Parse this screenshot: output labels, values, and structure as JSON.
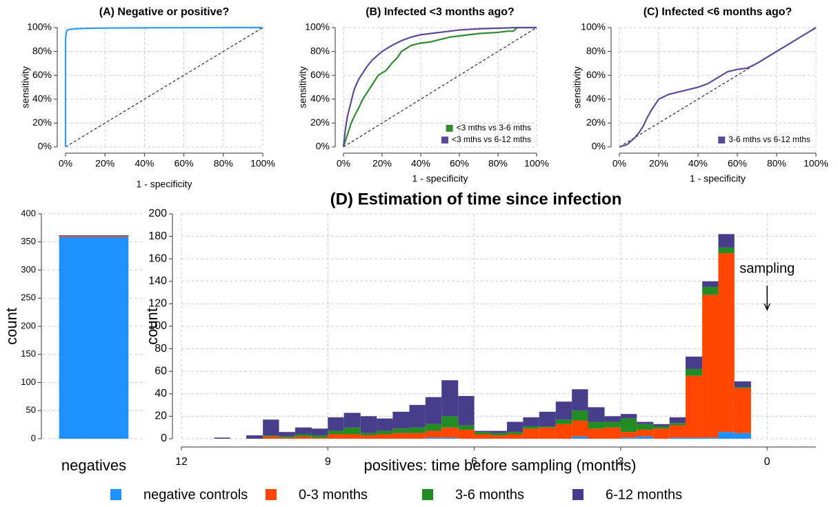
{
  "chart_data": [
    {
      "type": "line",
      "title": "(A) Negative or positive?",
      "x_label": "1 - specificity",
      "y_label": "sensitivity",
      "xlim": [
        0,
        100
      ],
      "ylim": [
        0,
        100
      ],
      "grid": true,
      "xticks": [
        {
          "value": 0,
          "label": "0%"
        },
        {
          "value": 20,
          "label": "20%"
        },
        {
          "value": 40,
          "label": "40%"
        },
        {
          "value": 60,
          "label": "60%"
        },
        {
          "value": 80,
          "label": "80%"
        },
        {
          "value": 100,
          "label": "100%"
        }
      ],
      "yticks": [
        {
          "value": 0,
          "label": "0%"
        },
        {
          "value": 20,
          "label": "20%"
        },
        {
          "value": 40,
          "label": "40%"
        },
        {
          "value": 60,
          "label": "60%"
        },
        {
          "value": 80,
          "label": "80%"
        },
        {
          "value": 100,
          "label": "100%"
        }
      ],
      "series": [
        {
          "color": "#3399ff",
          "x": [
            0,
            0,
            0.5,
            1,
            2,
            5,
            10,
            20,
            40,
            60,
            80,
            100
          ],
          "values": [
            0,
            90,
            97,
            98,
            98.5,
            99,
            99.3,
            99.6,
            99.8,
            99.9,
            100,
            100
          ]
        }
      ]
    },
    {
      "type": "line",
      "title": "(B) Infected <3 months ago?",
      "x_label": "1 - specificity",
      "y_label": "sensitivity",
      "xlim": [
        0,
        100
      ],
      "ylim": [
        0,
        100
      ],
      "grid": true,
      "legend": "bottom-right",
      "xticks": [
        {
          "value": 0,
          "label": "0%"
        },
        {
          "value": 20,
          "label": "20%"
        },
        {
          "value": 40,
          "label": "40%"
        },
        {
          "value": 60,
          "label": "60%"
        },
        {
          "value": 80,
          "label": "80%"
        },
        {
          "value": 100,
          "label": "100%"
        }
      ],
      "yticks": [
        {
          "value": 0,
          "label": "0%"
        },
        {
          "value": 20,
          "label": "20%"
        },
        {
          "value": 40,
          "label": "40%"
        },
        {
          "value": 60,
          "label": "60%"
        },
        {
          "value": 80,
          "label": "80%"
        },
        {
          "value": 100,
          "label": "100%"
        }
      ],
      "series": [
        {
          "name": "<3 mths vs 3-6 mths",
          "color": "#2e8b2e",
          "x": [
            0,
            2,
            4,
            6,
            8,
            10,
            12,
            14,
            16,
            18,
            20,
            22,
            25,
            28,
            30,
            35,
            40,
            45,
            50,
            55,
            60,
            70,
            80,
            85,
            88,
            90,
            100
          ],
          "values": [
            0,
            10,
            20,
            27,
            33,
            40,
            45,
            50,
            55,
            60,
            62,
            64,
            70,
            75,
            80,
            85,
            87,
            88,
            90,
            92,
            93,
            95,
            96,
            97,
            97,
            100,
            100
          ]
        },
        {
          "name": "<3 mths vs 6-12 mths",
          "color": "#5b4a9b",
          "x": [
            0,
            1,
            2,
            3,
            4,
            5,
            6,
            8,
            10,
            12,
            15,
            20,
            25,
            30,
            35,
            40,
            50,
            60,
            70,
            80,
            90,
            100
          ],
          "values": [
            0,
            15,
            25,
            32,
            38,
            45,
            50,
            57,
            62,
            67,
            73,
            80,
            85,
            89,
            92,
            94,
            96,
            98,
            99,
            99.5,
            100,
            100
          ]
        }
      ]
    },
    {
      "type": "line",
      "title": "(C) Infected <6 months ago?",
      "x_label": "1 - specificity",
      "y_label": "sensitivity",
      "xlim": [
        0,
        100
      ],
      "ylim": [
        0,
        100
      ],
      "grid": true,
      "legend": "bottom-right",
      "xticks": [
        {
          "value": 0,
          "label": "0%"
        },
        {
          "value": 20,
          "label": "20%"
        },
        {
          "value": 40,
          "label": "40%"
        },
        {
          "value": 60,
          "label": "60%"
        },
        {
          "value": 80,
          "label": "80%"
        },
        {
          "value": 100,
          "label": "100%"
        }
      ],
      "yticks": [
        {
          "value": 0,
          "label": "0%"
        },
        {
          "value": 20,
          "label": "20%"
        },
        {
          "value": 40,
          "label": "40%"
        },
        {
          "value": 60,
          "label": "60%"
        },
        {
          "value": 80,
          "label": "80%"
        },
        {
          "value": 100,
          "label": "100%"
        }
      ],
      "series": [
        {
          "name": "3-6 mths vs 6-12 mths",
          "color": "#5b4a9b",
          "x": [
            0,
            4,
            6,
            8,
            10,
            12,
            14,
            16,
            18,
            20,
            25,
            30,
            35,
            40,
            45,
            50,
            55,
            60,
            65,
            70,
            75,
            80,
            85,
            90,
            95,
            100
          ],
          "values": [
            0,
            2,
            5,
            8,
            12,
            17,
            24,
            30,
            35,
            40,
            44,
            46,
            48,
            50,
            53,
            58,
            63,
            65,
            66,
            70,
            75,
            80,
            85,
            90,
            95,
            100
          ]
        }
      ]
    },
    {
      "type": "bar",
      "stacked": true,
      "y_label": "count",
      "categories": [
        "negatives"
      ],
      "ylim": [
        0,
        400
      ],
      "yticks": [
        0,
        50,
        100,
        150,
        200,
        250,
        300,
        350,
        400
      ],
      "grid": true,
      "series": [
        {
          "color": "#1e90ff",
          "values": [
            359
          ]
        },
        {
          "color": "#ff4500",
          "values": [
            2
          ]
        },
        {
          "color": "#483d8b",
          "values": [
            1
          ]
        }
      ]
    },
    {
      "type": "histogram",
      "stacked": true,
      "title": "(D) Estimation of time since infection",
      "x_label": "positives: time before sampling (months)",
      "y_label": "count",
      "xlim": [
        12,
        -1
      ],
      "xticks": [
        12,
        9,
        6,
        3,
        0
      ],
      "ylim": [
        0,
        200
      ],
      "yticks": [
        0,
        20,
        40,
        60,
        80,
        100,
        120,
        140,
        160,
        180,
        200
      ],
      "grid": true,
      "legend": "bottom",
      "annotation": {
        "text": "sampling",
        "x": 0
      },
      "bins": [
        11.33,
        11,
        10.67,
        10.33,
        10,
        9.67,
        9.33,
        9,
        8.67,
        8.33,
        8,
        7.67,
        7.33,
        7,
        6.67,
        6.33,
        6,
        5.67,
        5.33,
        5,
        4.67,
        4.33,
        4,
        3.67,
        3.33,
        3,
        2.67,
        2.33,
        2,
        1.67,
        1.33,
        1,
        0.67,
        0.33
      ],
      "series": [
        {
          "name": "negative controls",
          "color": "#1e90ff",
          "values": [
            0,
            0,
            0,
            0,
            0,
            0,
            0,
            0,
            0,
            0,
            0,
            0,
            0,
            1,
            1,
            0,
            0,
            0,
            0,
            0,
            0,
            0,
            2,
            0,
            0,
            1,
            2,
            0,
            1,
            1,
            1,
            6,
            5
          ]
        },
        {
          "name": "0-3 months",
          "color": "#ff4500",
          "values": [
            0,
            0,
            0,
            2,
            1,
            2,
            1,
            4,
            4,
            3,
            4,
            5,
            5,
            6,
            9,
            8,
            4,
            3,
            4,
            9,
            10,
            13,
            14,
            9,
            10,
            5,
            6,
            9,
            11,
            55,
            127,
            159,
            40
          ]
        },
        {
          "name": "3-6 months",
          "color": "#228b22",
          "values": [
            0,
            0,
            0,
            1,
            1,
            2,
            2,
            3,
            6,
            2,
            3,
            4,
            5,
            6,
            10,
            4,
            2,
            2,
            2,
            2,
            1,
            4,
            9,
            6,
            5,
            12,
            5,
            2,
            2,
            6,
            7,
            5,
            1
          ]
        },
        {
          "name": "6-12 months",
          "color": "#483d8b",
          "values": [
            1,
            0,
            3,
            14,
            4,
            6,
            6,
            12,
            13,
            15,
            11,
            15,
            20,
            24,
            32,
            26,
            1,
            2,
            9,
            8,
            13,
            16,
            19,
            13,
            5,
            4,
            2,
            2,
            5,
            11,
            5,
            12,
            5
          ]
        }
      ]
    }
  ]
}
